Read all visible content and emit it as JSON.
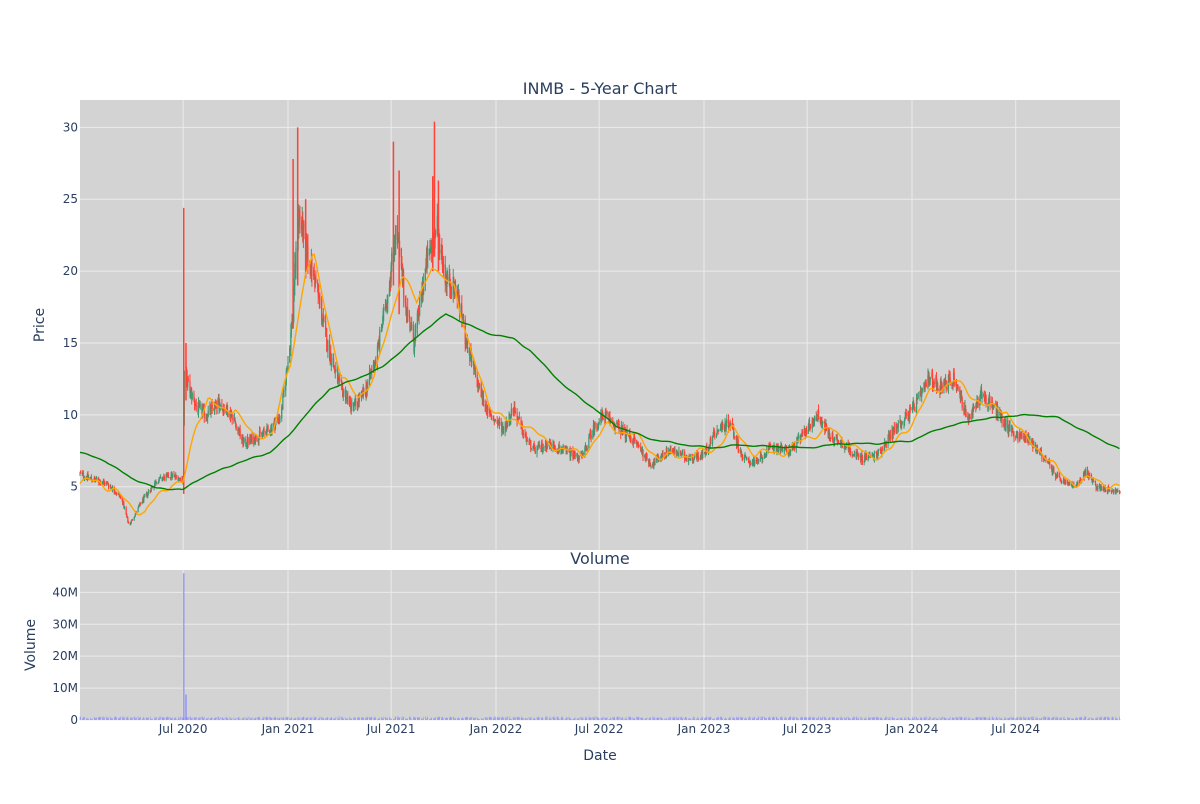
{
  "chart_data": {
    "type": "candlestick",
    "title": "INMB - 5-Year Chart",
    "volume_title": "Volume",
    "xlabel": "Date",
    "price_ylabel": "Price",
    "volume_ylabel": "Volume",
    "x_ticks": [
      "Jul 2020",
      "Jan 2021",
      "Jul 2021",
      "Jan 2022",
      "Jul 2022",
      "Jan 2023",
      "Jul 2023",
      "Jan 2024",
      "Jul 2024"
    ],
    "price_ticks": [
      5,
      10,
      15,
      20,
      25,
      30
    ],
    "volume_ticks": [
      "0",
      "10M",
      "20M",
      "30M",
      "40M"
    ],
    "price_range": [
      0.6,
      31.9
    ],
    "volume_range": [
      0,
      47000000
    ],
    "x_range": [
      "2020-01-02",
      "2024-12-31"
    ],
    "grid": true,
    "series": [
      {
        "type": "candlestick",
        "increasing_color": "#3d9970",
        "decreasing_color": "#ff4136",
        "close_anchors": [
          [
            "2020-01-02",
            5.9
          ],
          [
            "2020-01-25",
            5.5
          ],
          [
            "2020-02-20",
            5.2
          ],
          [
            "2020-03-15",
            4.2
          ],
          [
            "2020-03-28",
            2.3
          ],
          [
            "2020-04-20",
            4.0
          ],
          [
            "2020-05-15",
            5.4
          ],
          [
            "2020-06-10",
            5.8
          ],
          [
            "2020-07-01",
            5.5
          ],
          [
            "2020-07-03",
            13.0
          ],
          [
            "2020-07-10",
            12.0
          ],
          [
            "2020-07-25",
            10.5
          ],
          [
            "2020-08-10",
            10.0
          ],
          [
            "2020-09-01",
            10.8
          ],
          [
            "2020-09-25",
            10.0
          ],
          [
            "2020-10-15",
            8.0
          ],
          [
            "2020-11-10",
            8.5
          ],
          [
            "2020-12-01",
            9.0
          ],
          [
            "2020-12-20",
            10.0
          ],
          [
            "2021-01-05",
            15.0
          ],
          [
            "2021-01-20",
            24.0
          ],
          [
            "2021-02-05",
            21.0
          ],
          [
            "2021-02-20",
            19.0
          ],
          [
            "2021-03-10",
            15.0
          ],
          [
            "2021-04-01",
            12.0
          ],
          [
            "2021-04-25",
            10.5
          ],
          [
            "2021-05-15",
            11.5
          ],
          [
            "2021-06-05",
            14.0
          ],
          [
            "2021-06-25",
            18.5
          ],
          [
            "2021-07-10",
            23.0
          ],
          [
            "2021-07-25",
            18.0
          ],
          [
            "2021-08-10",
            15.0
          ],
          [
            "2021-09-01",
            20.5
          ],
          [
            "2021-09-20",
            23.0
          ],
          [
            "2021-10-05",
            19.5
          ],
          [
            "2021-10-25",
            18.5
          ],
          [
            "2021-11-10",
            15.0
          ],
          [
            "2021-12-01",
            12.0
          ],
          [
            "2021-12-20",
            10.0
          ],
          [
            "2022-01-15",
            9.0
          ],
          [
            "2022-02-01",
            10.5
          ],
          [
            "2022-02-20",
            8.5
          ],
          [
            "2022-03-10",
            7.5
          ],
          [
            "2022-04-01",
            8.0
          ],
          [
            "2022-05-01",
            7.5
          ],
          [
            "2022-06-01",
            7.0
          ],
          [
            "2022-06-20",
            9.0
          ],
          [
            "2022-07-10",
            10.0
          ],
          [
            "2022-08-01",
            9.2
          ],
          [
            "2022-09-01",
            8.2
          ],
          [
            "2022-10-01",
            6.5
          ],
          [
            "2022-11-01",
            7.6
          ],
          [
            "2022-12-01",
            7.0
          ],
          [
            "2023-01-01",
            7.2
          ],
          [
            "2023-01-20",
            8.8
          ],
          [
            "2023-02-15",
            9.5
          ],
          [
            "2023-03-10",
            7.0
          ],
          [
            "2023-04-01",
            6.6
          ],
          [
            "2023-05-01",
            7.8
          ],
          [
            "2023-06-01",
            7.5
          ],
          [
            "2023-07-01",
            9.0
          ],
          [
            "2023-07-20",
            10.0
          ],
          [
            "2023-08-10",
            8.5
          ],
          [
            "2023-09-01",
            8.0
          ],
          [
            "2023-10-01",
            7.0
          ],
          [
            "2023-11-01",
            7.2
          ],
          [
            "2023-12-01",
            9.0
          ],
          [
            "2024-01-05",
            10.5
          ],
          [
            "2024-02-01",
            12.5
          ],
          [
            "2024-02-20",
            12.0
          ],
          [
            "2024-03-15",
            12.5
          ],
          [
            "2024-04-10",
            9.5
          ],
          [
            "2024-05-01",
            11.5
          ],
          [
            "2024-05-25",
            10.5
          ],
          [
            "2024-06-20",
            9.0
          ],
          [
            "2024-07-05",
            8.5
          ],
          [
            "2024-07-25",
            8.3
          ],
          [
            "2024-08-20",
            7.0
          ],
          [
            "2024-09-15",
            5.5
          ],
          [
            "2024-10-15",
            5.0
          ],
          [
            "2024-11-01",
            6.0
          ],
          [
            "2024-11-20",
            5.0
          ],
          [
            "2024-12-31",
            4.6
          ]
        ],
        "spikes": [
          {
            "date": "2020-07-02",
            "low": 4.5,
            "high": 24.4
          },
          {
            "date": "2020-07-06",
            "low": 11.0,
            "high": 15.0
          },
          {
            "date": "2021-01-10",
            "low": 16.0,
            "high": 27.8
          },
          {
            "date": "2021-01-18",
            "low": 19.0,
            "high": 30.0
          },
          {
            "date": "2021-02-01",
            "low": 19.5,
            "high": 25.0
          },
          {
            "date": "2021-07-05",
            "low": 19.0,
            "high": 29.0
          },
          {
            "date": "2021-07-15",
            "low": 17.0,
            "high": 27.0
          },
          {
            "date": "2021-09-12",
            "low": 20.0,
            "high": 26.6
          },
          {
            "date": "2021-09-15",
            "low": 21.0,
            "high": 30.4
          },
          {
            "date": "2021-09-22",
            "low": 20.0,
            "high": 26.3
          }
        ]
      },
      {
        "type": "line",
        "color": "#ffa500",
        "points": [
          [
            "2020-01-02",
            5.3
          ],
          [
            "2020-02-01",
            5.4
          ],
          [
            "2020-03-01",
            4.8
          ],
          [
            "2020-04-01",
            3.6
          ],
          [
            "2020-04-25",
            3.2
          ],
          [
            "2020-05-15",
            4.2
          ],
          [
            "2020-06-10",
            5.3
          ],
          [
            "2020-07-01",
            5.2
          ],
          [
            "2020-07-25",
            9.5
          ],
          [
            "2020-08-15",
            11.2
          ],
          [
            "2020-09-05",
            10.2
          ],
          [
            "2020-10-01",
            10.5
          ],
          [
            "2020-11-01",
            8.4
          ],
          [
            "2020-12-05",
            8.8
          ],
          [
            "2021-01-05",
            13.5
          ],
          [
            "2021-02-01",
            20.0
          ],
          [
            "2021-02-15",
            21.0
          ],
          [
            "2021-03-10",
            17.0
          ],
          [
            "2021-04-05",
            12.5
          ],
          [
            "2021-05-05",
            11.3
          ],
          [
            "2021-06-01",
            12.5
          ],
          [
            "2021-06-25",
            16.0
          ],
          [
            "2021-07-20",
            19.8
          ],
          [
            "2021-08-15",
            17.8
          ],
          [
            "2021-09-10",
            20.5
          ],
          [
            "2021-09-25",
            19.5
          ],
          [
            "2021-10-20",
            19.0
          ],
          [
            "2021-11-20",
            14.0
          ],
          [
            "2021-12-20",
            10.8
          ],
          [
            "2022-01-20",
            9.5
          ],
          [
            "2022-02-20",
            9.5
          ],
          [
            "2022-04-01",
            8.0
          ],
          [
            "2022-06-01",
            7.2
          ],
          [
            "2022-07-15",
            9.2
          ],
          [
            "2022-09-01",
            8.6
          ],
          [
            "2022-10-15",
            7.0
          ],
          [
            "2022-12-01",
            7.2
          ],
          [
            "2023-01-15",
            7.5
          ],
          [
            "2023-02-20",
            9.0
          ],
          [
            "2023-04-01",
            7.3
          ],
          [
            "2023-05-20",
            7.4
          ],
          [
            "2023-07-10",
            8.6
          ],
          [
            "2023-08-10",
            9.0
          ],
          [
            "2023-09-15",
            8.0
          ],
          [
            "2023-10-20",
            7.0
          ],
          [
            "2023-11-25",
            7.6
          ],
          [
            "2024-01-01",
            9.5
          ],
          [
            "2024-02-01",
            11.5
          ],
          [
            "2024-03-15",
            12.4
          ],
          [
            "2024-04-10",
            11.5
          ],
          [
            "2024-05-15",
            10.5
          ],
          [
            "2024-06-15",
            10.3
          ],
          [
            "2024-07-15",
            8.5
          ],
          [
            "2024-08-15",
            7.5
          ],
          [
            "2024-09-15",
            6.0
          ],
          [
            "2024-10-15",
            5.2
          ],
          [
            "2024-11-15",
            5.6
          ],
          [
            "2024-12-31",
            4.8
          ]
        ]
      },
      {
        "type": "line",
        "color": "#008000",
        "points": [
          [
            "2020-01-02",
            7.4
          ],
          [
            "2020-02-15",
            6.8
          ],
          [
            "2020-04-01",
            5.6
          ],
          [
            "2020-05-15",
            4.9
          ],
          [
            "2020-07-01",
            4.8
          ],
          [
            "2020-08-01",
            5.6
          ],
          [
            "2020-10-01",
            6.6
          ],
          [
            "2020-12-01",
            7.4
          ],
          [
            "2021-01-01",
            8.5
          ],
          [
            "2021-02-01",
            10.0
          ],
          [
            "2021-03-15",
            11.8
          ],
          [
            "2021-05-01",
            12.5
          ],
          [
            "2021-06-15",
            13.3
          ],
          [
            "2021-07-20",
            14.5
          ],
          [
            "2021-09-01",
            16.0
          ],
          [
            "2021-10-05",
            17.0
          ],
          [
            "2021-11-01",
            16.5
          ],
          [
            "2021-12-15",
            15.7
          ],
          [
            "2022-02-01",
            15.3
          ],
          [
            "2022-03-01",
            14.5
          ],
          [
            "2022-05-01",
            12.0
          ],
          [
            "2022-06-20",
            10.5
          ],
          [
            "2022-08-01",
            9.2
          ],
          [
            "2022-10-01",
            8.3
          ],
          [
            "2022-12-01",
            7.9
          ],
          [
            "2023-01-15",
            7.7
          ],
          [
            "2023-03-01",
            7.9
          ],
          [
            "2023-05-01",
            7.8
          ],
          [
            "2023-07-01",
            7.7
          ],
          [
            "2023-09-01",
            8.0
          ],
          [
            "2023-11-01",
            8.0
          ],
          [
            "2024-01-01",
            8.2
          ],
          [
            "2024-02-15",
            9.0
          ],
          [
            "2024-04-15",
            9.6
          ],
          [
            "2024-06-15",
            9.9
          ],
          [
            "2024-08-01",
            10.0
          ],
          [
            "2024-09-15",
            9.8
          ],
          [
            "2024-11-01",
            8.8
          ],
          [
            "2024-12-31",
            7.6
          ]
        ]
      },
      {
        "type": "bar",
        "name": "Volume",
        "color": "#8080ff",
        "spikes": [
          {
            "date": "2020-07-02",
            "value": 46000000
          },
          {
            "date": "2020-07-06",
            "value": 8000000
          }
        ]
      }
    ]
  },
  "colors": {
    "plot_bg": "#d3d3d3",
    "grid": "#ebebeb",
    "text": "#2a3f5f",
    "page_bg": "#ffffff"
  }
}
